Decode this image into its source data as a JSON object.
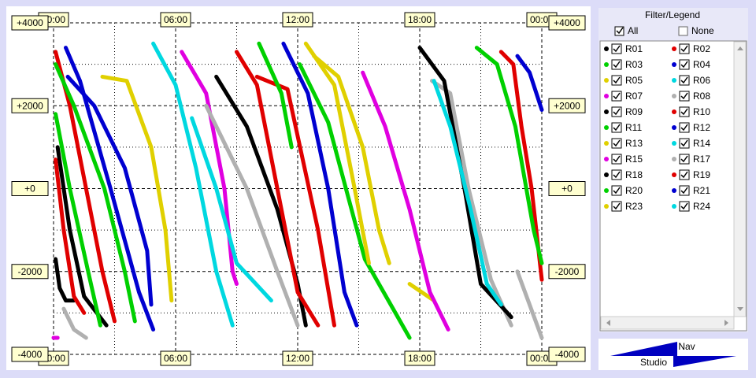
{
  "chart_data": {
    "type": "line",
    "xlim": [
      0,
      24
    ],
    "ylim": [
      -4000,
      4000
    ],
    "xticks": [
      {
        "value": 0,
        "label": "00:00"
      },
      {
        "value": 6,
        "label": "06:00"
      },
      {
        "value": 12,
        "label": "12:00"
      },
      {
        "value": 18,
        "label": "18:00"
      },
      {
        "value": 24,
        "label": "00:00"
      }
    ],
    "yticks": [
      {
        "value": 4000,
        "label": "+4000"
      },
      {
        "value": 2000,
        "label": "+2000"
      },
      {
        "value": 0,
        "label": "+0"
      },
      {
        "value": -2000,
        "label": "-2000"
      },
      {
        "value": -4000,
        "label": "-4000"
      }
    ],
    "xminor": [
      3,
      9,
      15,
      21
    ],
    "yminor": [
      -3000,
      -1000,
      1000,
      3000
    ],
    "grid": true,
    "series": [
      {
        "name": "R01",
        "color": "#000000",
        "x": [
          0.2,
          0.8,
          1.5,
          2.6,
          null,
          0.1,
          0.3,
          0.6,
          1.0
        ],
        "values": [
          1000,
          -1000,
          -2600,
          -3300,
          null,
          -1700,
          -2400,
          -2700,
          -2700
        ]
      },
      {
        "name": "R02",
        "color": "#e00000",
        "x": [
          0.1,
          0.8,
          1.6,
          2.4,
          3.0,
          null,
          0.1,
          0.5,
          1.0,
          1.5
        ],
        "values": [
          3300,
          2000,
          0,
          -2000,
          -3200,
          null,
          700,
          -1000,
          -2600,
          -3000
        ]
      },
      {
        "name": "R03",
        "color": "#00d000",
        "x": [
          0.1,
          1.0,
          2.5,
          3.5,
          4.0,
          null,
          0.1,
          0.8,
          1.7,
          2.3
        ],
        "values": [
          3000,
          2000,
          0,
          -2000,
          -3200,
          null,
          1800,
          0,
          -2000,
          -3300
        ]
      },
      {
        "name": "R04",
        "color": "#0000d0",
        "x": [
          0.6,
          1.3,
          2.8,
          4.2,
          4.9,
          null,
          0.7,
          2.0,
          3.5,
          4.6,
          4.8
        ],
        "values": [
          3400,
          2600,
          0,
          -2500,
          -3400,
          null,
          2700,
          2000,
          500,
          -1500,
          -2800
        ]
      },
      {
        "name": "R05",
        "color": "#e0d000",
        "x": [
          2.4,
          3.6,
          4.8,
          5.5,
          5.8
        ],
        "values": [
          2700,
          2600,
          1000,
          -1000,
          -2700
        ]
      },
      {
        "name": "R06",
        "color": "#00d8e0",
        "x": [
          4.9,
          6.0,
          7.0,
          8.0,
          8.8
        ],
        "values": [
          3500,
          2500,
          500,
          -2000,
          -3300
        ]
      },
      {
        "name": "R07",
        "color": "#e000e0",
        "x": [
          6.3,
          7.5,
          8.4,
          8.8,
          9.0,
          null,
          0.0,
          0.2
        ],
        "values": [
          3300,
          2300,
          0,
          -2000,
          -2300,
          null,
          -3600,
          -3600
        ]
      },
      {
        "name": "R08",
        "color": "#b0b0b0",
        "x": [
          0.5,
          1.0,
          1.6,
          null,
          7.5,
          9.5,
          11.0,
          12.0
        ],
        "values": [
          -2900,
          -3400,
          -3600,
          null,
          2000,
          0,
          -2000,
          -3300
        ]
      },
      {
        "name": "R09",
        "color": "#000000",
        "x": [
          8.0,
          9.5,
          11.0,
          12.0,
          12.4
        ],
        "values": [
          2700,
          1500,
          -500,
          -2300,
          -3300
        ]
      },
      {
        "name": "R10",
        "color": "#e00000",
        "x": [
          9.0,
          10.0,
          11.0,
          12.0,
          13.0,
          null,
          10.0,
          11.5,
          13.0,
          13.8
        ],
        "values": [
          3300,
          2500,
          0,
          -2500,
          -3300,
          null,
          2700,
          2400,
          -1000,
          -3300
        ]
      },
      {
        "name": "R11",
        "color": "#00d000",
        "x": [
          10.1,
          11.2,
          11.7,
          null,
          12.1,
          13.5,
          15.3,
          17.5
        ],
        "values": [
          3500,
          2300,
          1000,
          null,
          3000,
          1600,
          -1700,
          -3600
        ]
      },
      {
        "name": "R12",
        "color": "#0000d0",
        "x": [
          11.3,
          12.5,
          13.5,
          14.3,
          14.9
        ],
        "values": [
          3500,
          2300,
          0,
          -2500,
          -3300
        ]
      },
      {
        "name": "R13",
        "color": "#e0d000",
        "x": [
          12.4,
          13.8,
          14.8,
          15.5,
          null,
          17.5,
          18.7
        ],
        "values": [
          3500,
          2500,
          0,
          -1800,
          null,
          -2300,
          -2700
        ]
      },
      {
        "name": "R14",
        "color": "#00d8e0",
        "x": [
          6.8,
          8.0,
          9.0,
          10.7
        ],
        "values": [
          1700,
          0,
          -1800,
          -2700
        ]
      },
      {
        "name": "R15",
        "color": "#e000e0",
        "x": [
          15.2,
          16.3,
          17.5,
          18.5,
          19.4
        ],
        "values": [
          2800,
          1500,
          -500,
          -2500,
          -3400
        ]
      },
      {
        "name": "R17",
        "color": "#b0b0b0",
        "x": [
          18.6,
          19.5,
          20.4,
          21.5,
          22.5,
          null,
          22.8,
          24.0
        ],
        "values": [
          2600,
          2300,
          0,
          -2200,
          -3300,
          null,
          -2000,
          -3600
        ]
      },
      {
        "name": "R18",
        "color": "#000000",
        "x": [
          18.0,
          19.2,
          20.2,
          21.0,
          22.5
        ],
        "values": [
          3400,
          2600,
          0,
          -2300,
          -3100
        ]
      },
      {
        "name": "R19",
        "color": "#e00000",
        "x": [
          22.0,
          22.6,
          23.0,
          23.5,
          24.0
        ],
        "values": [
          3300,
          3000,
          1500,
          0,
          -2200
        ]
      },
      {
        "name": "R20",
        "color": "#00d000",
        "x": [
          20.8,
          21.8,
          22.7,
          23.6,
          24.0
        ],
        "values": [
          3400,
          3000,
          1500,
          -1000,
          -1800
        ]
      },
      {
        "name": "R21",
        "color": "#0000d0",
        "x": [
          22.8,
          23.4,
          24.0
        ],
        "values": [
          3200,
          2800,
          1900
        ]
      },
      {
        "name": "R23",
        "color": "#e0d000",
        "x": [
          12.8,
          14.0,
          15.2,
          16.0,
          16.5
        ],
        "values": [
          3200,
          2700,
          1000,
          -1000,
          -1800
        ]
      },
      {
        "name": "R24",
        "color": "#00d8e0",
        "x": [
          18.7,
          19.5,
          20.5,
          21.3,
          22.0
        ],
        "values": [
          2600,
          1500,
          -500,
          -2300,
          -2800
        ]
      }
    ]
  },
  "legend_panel": {
    "title": "Filter/Legend",
    "all_label": "All",
    "none_label": "None"
  },
  "nav_button": {
    "top": "Nav",
    "bottom": "Studio"
  }
}
